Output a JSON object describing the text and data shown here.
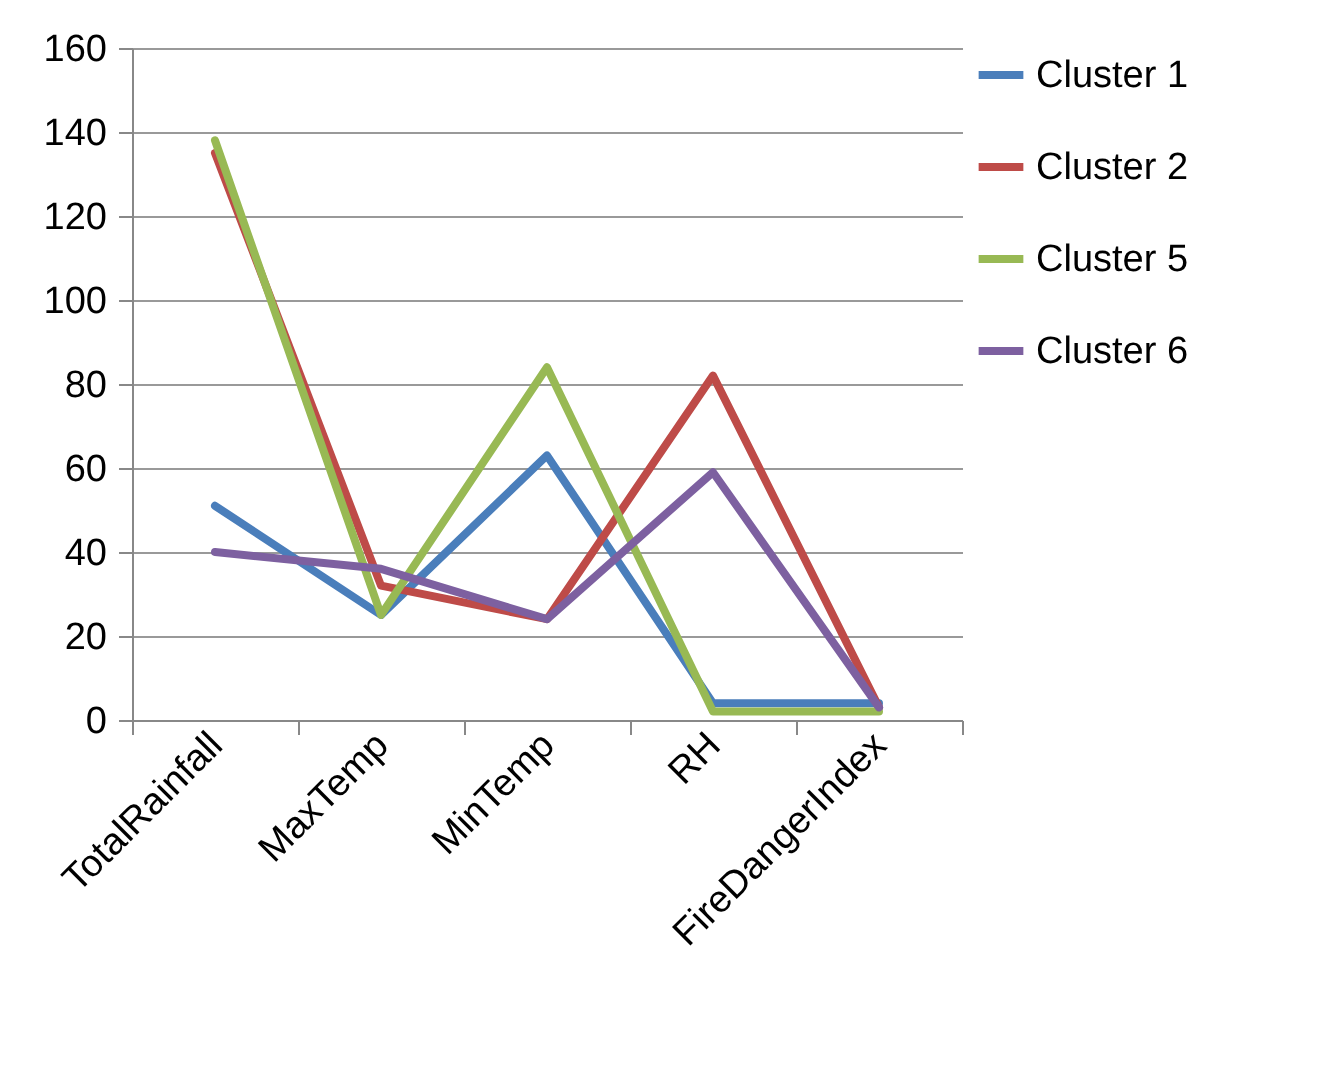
{
  "chart_data": {
    "type": "line",
    "categories": [
      "TotalRainfall",
      "MaxTemp",
      "MinTemp",
      "RH",
      "FireDangerIndex"
    ],
    "series": [
      {
        "name": "Cluster 1",
        "color": "#4a7ebb",
        "values": [
          51,
          25,
          63,
          4,
          4
        ]
      },
      {
        "name": "Cluster 2",
        "color": "#be4b48",
        "values": [
          135,
          32,
          24,
          82,
          3
        ]
      },
      {
        "name": "Cluster 5",
        "color": "#98b954",
        "values": [
          138,
          25,
          84,
          2,
          2
        ]
      },
      {
        "name": "Cluster 6",
        "color": "#7d60a0",
        "values": [
          40,
          36,
          24,
          59,
          3
        ]
      }
    ],
    "ylim": [
      0,
      160
    ],
    "yticks": [
      0,
      20,
      40,
      60,
      80,
      100,
      120,
      140,
      160
    ],
    "grid": "y",
    "legend": "right"
  }
}
